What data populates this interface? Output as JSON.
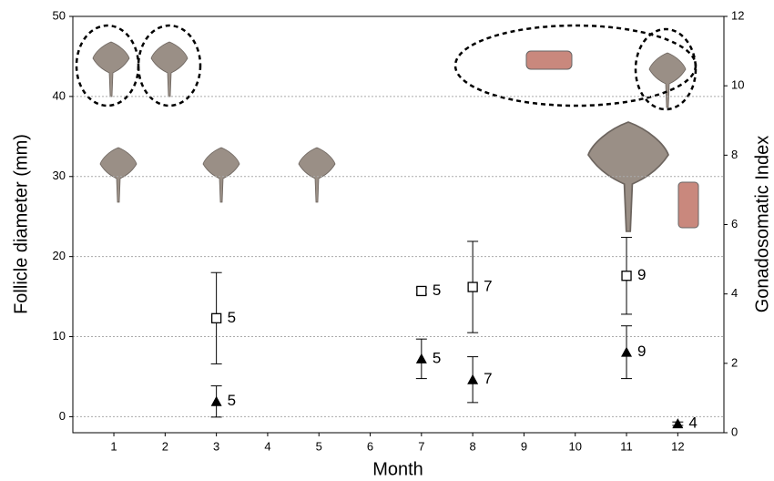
{
  "chart_data": {
    "type": "scatter",
    "x_label": "Month",
    "y_label": "Follicle diameter (mm)",
    "y2_label": "Gonadosomatic Index",
    "xlim": [
      0.2,
      12.9
    ],
    "xticks": [
      1,
      2,
      3,
      4,
      5,
      6,
      7,
      8,
      9,
      10,
      11,
      12
    ],
    "ylim": [
      -2,
      50
    ],
    "yticks": [
      0,
      10,
      20,
      30,
      40,
      50
    ],
    "y2lim": [
      0,
      12
    ],
    "y2ticks": [
      0,
      2,
      4,
      6,
      8,
      10,
      12
    ],
    "grid": true,
    "series": [
      {
        "marker": "square",
        "color": "#000000",
        "axis": "y",
        "x": [
          3,
          7,
          8,
          11
        ],
        "values": [
          12.3,
          15.7,
          16.2,
          17.6
        ],
        "errors": [
          5.7,
          0.4,
          5.7,
          4.8
        ],
        "n": [
          5,
          5,
          7,
          9
        ]
      },
      {
        "marker": "triangle",
        "color": "#000000",
        "axis": "y2",
        "x": [
          3,
          7,
          8,
          11,
          12
        ],
        "values": [
          0.9,
          2.13,
          1.53,
          2.32,
          0.26
        ],
        "errors": [
          0.45,
          0.57,
          0.66,
          0.76,
          0.05
        ],
        "n": [
          5,
          5,
          7,
          9,
          4
        ]
      }
    ]
  }
}
